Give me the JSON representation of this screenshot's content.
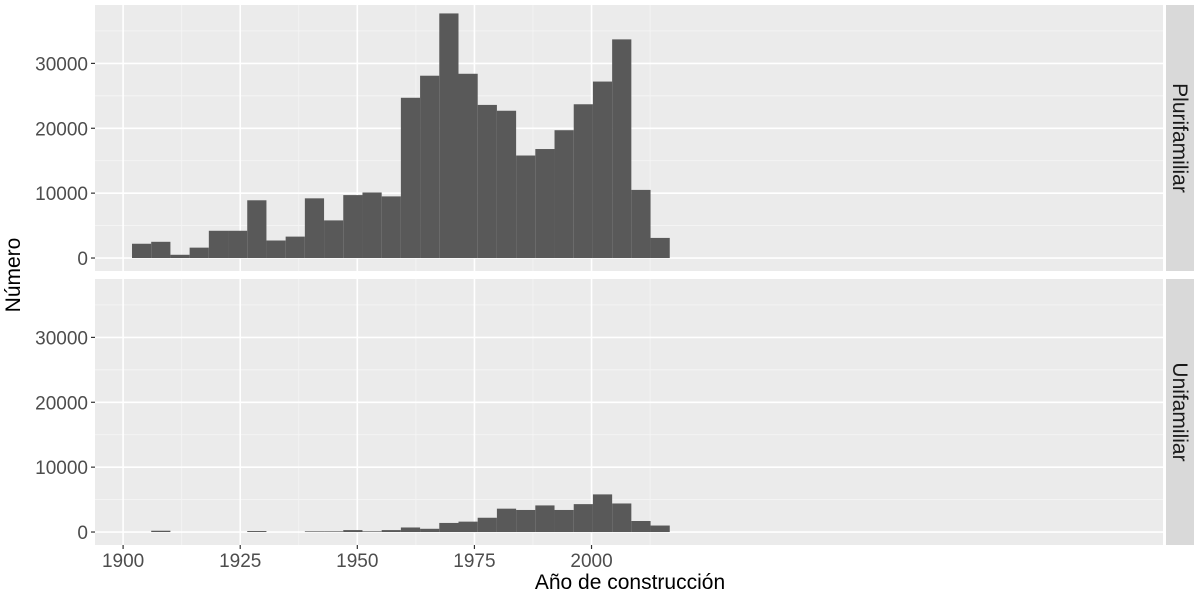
{
  "chart_data": {
    "type": "bar",
    "subtype": "faceted-histogram",
    "xlabel": "Año de construcción",
    "ylabel": "Número",
    "xlim": [
      1894,
      2122
    ],
    "ylim": [
      -2000,
      39000
    ],
    "xticks": [
      1900,
      1925,
      1950,
      1975,
      2000
    ],
    "xtick_labels": [
      "1900",
      "1925",
      "1950",
      "1975",
      "2000"
    ],
    "yticks": [
      0,
      10000,
      20000,
      30000
    ],
    "ytick_labels": [
      "0",
      "10000",
      "20000",
      "30000"
    ],
    "bin_width": 4.1,
    "bin_starts": [
      1901.9,
      1906.0,
      1910.1,
      1914.2,
      1918.3,
      1922.4,
      1926.5,
      1930.6,
      1934.7,
      1938.8,
      1942.9,
      1947.0,
      1951.1,
      1955.2,
      1959.3,
      1963.4,
      1967.5,
      1971.6,
      1975.7,
      1979.8,
      1983.9,
      1988.0,
      1992.1,
      1996.2,
      2000.3,
      2004.4,
      2008.5,
      2012.6
    ],
    "grid": true,
    "bar_color": "#595959",
    "panel_background": "#ebebeb",
    "strip_background": "#d9d9d9",
    "facets": [
      {
        "name": "Plurifamiliar",
        "values": [
          2200,
          2500,
          500,
          1600,
          4200,
          4200,
          8900,
          2700,
          3300,
          9200,
          5800,
          9700,
          10100,
          9500,
          24700,
          28100,
          37700,
          28400,
          23600,
          22700,
          15800,
          16800,
          19700,
          23700,
          27200,
          33700,
          10500,
          3100
        ]
      },
      {
        "name": "Unifamiliar",
        "values": [
          0,
          200,
          0,
          0,
          0,
          0,
          150,
          0,
          0,
          100,
          100,
          300,
          100,
          300,
          700,
          500,
          1400,
          1600,
          2200,
          3600,
          3400,
          4100,
          3400,
          4300,
          5800,
          4400,
          1700,
          1000
        ]
      }
    ]
  }
}
